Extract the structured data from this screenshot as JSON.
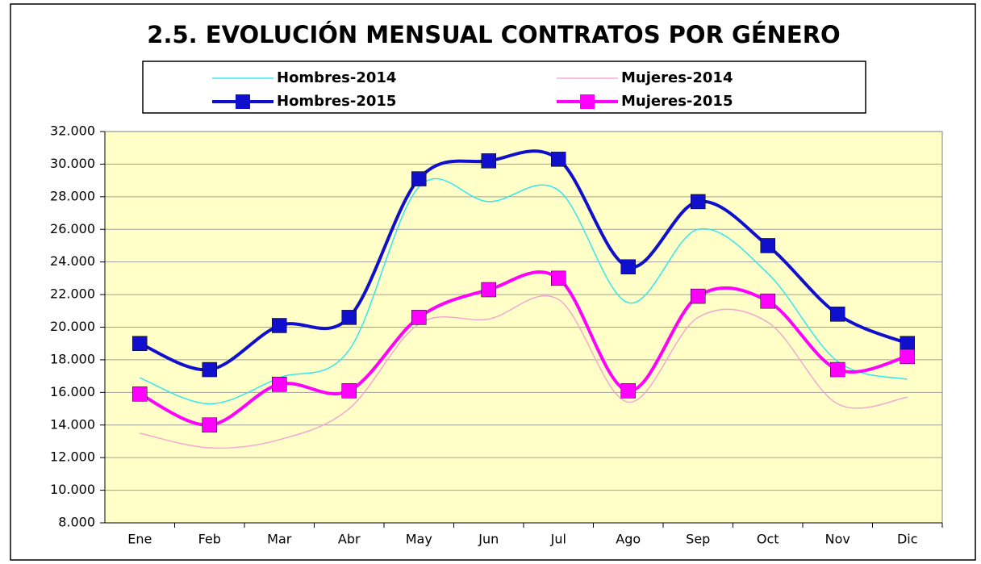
{
  "chart_data": {
    "type": "line",
    "title": "2.5. EVOLUCIÓN MENSUAL CONTRATOS POR GÉNERO",
    "categories": [
      "Ene",
      "Feb",
      "Mar",
      "Abr",
      "May",
      "Jun",
      "Jul",
      "Ago",
      "Sep",
      "Oct",
      "Nov",
      "Dic"
    ],
    "series": [
      {
        "name": "Hombres-2014",
        "color": "#33e6f0",
        "line_width": 1.5,
        "marker": "none",
        "values": [
          16900,
          15300,
          16900,
          18600,
          28600,
          27700,
          28400,
          21500,
          26000,
          23300,
          17900,
          16800
        ]
      },
      {
        "name": "Mujeres-2014",
        "color": "#f4a8d0",
        "line_width": 1.5,
        "marker": "none",
        "values": [
          13500,
          12600,
          13100,
          15000,
          20200,
          20500,
          21700,
          15400,
          20600,
          20300,
          15300,
          15700
        ]
      },
      {
        "name": "Hombres-2015",
        "color": "#1010cc",
        "line_width": 4,
        "marker": "square",
        "values": [
          19000,
          17400,
          20100,
          20600,
          29100,
          30200,
          30300,
          23700,
          27700,
          25000,
          20800,
          19000
        ]
      },
      {
        "name": "Mujeres-2015",
        "color": "#ff00ff",
        "line_width": 4,
        "marker": "square",
        "values": [
          15900,
          14000,
          16500,
          16100,
          20600,
          22300,
          23000,
          16100,
          21900,
          21600,
          17400,
          18200
        ]
      }
    ],
    "ylim": [
      8000,
      32000
    ],
    "yticks": [
      {
        "value": 8000,
        "label": "8.000"
      },
      {
        "value": 10000,
        "label": "10.000"
      },
      {
        "value": 12000,
        "label": "12.000"
      },
      {
        "value": 14000,
        "label": "14.000"
      },
      {
        "value": 16000,
        "label": "16.000"
      },
      {
        "value": 18000,
        "label": "18.000"
      },
      {
        "value": 20000,
        "label": "20.000"
      },
      {
        "value": 22000,
        "label": "22.000"
      },
      {
        "value": 24000,
        "label": "24.000"
      },
      {
        "value": 26000,
        "label": "26.000"
      },
      {
        "value": 28000,
        "label": "28.000"
      },
      {
        "value": 30000,
        "label": "30.000"
      },
      {
        "value": 32000,
        "label": "32.000"
      }
    ],
    "grid": true,
    "plot_background": "#ffffc8",
    "smooth": true
  }
}
